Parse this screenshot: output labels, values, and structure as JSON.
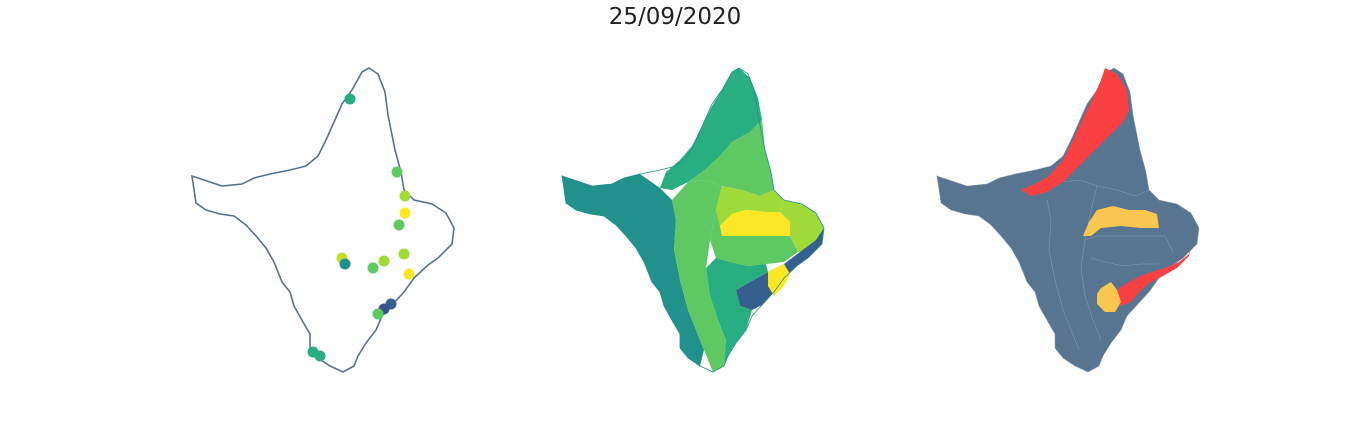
{
  "title": "25/09/2020",
  "colors": {
    "outline": "#557391",
    "viridis_dark": "#355f8d",
    "viridis_teal": "#21918c",
    "viridis_green": "#28ae80",
    "viridis_lightgreen": "#5ec962",
    "viridis_lime": "#a0da39",
    "viridis_yellow": "#fde725",
    "risk_base": "#577590",
    "risk_high": "#f94144",
    "risk_medium": "#f9c74f"
  },
  "chart_data": [
    {
      "type": "scatter",
      "panel": "points",
      "point_colors": [
        "#28ae80",
        "#5ec962",
        "#a0da39",
        "#fde725",
        "#5ec962",
        "#c2df23",
        "#21918c",
        "#5ec962",
        "#a0da39",
        "#a0da39",
        "#fde725",
        "#355f8d",
        "#3b528b",
        "#5ec962",
        "#28ae80",
        "#28ae80"
      ]
    },
    {
      "type": "heatmap",
      "panel": "regions",
      "region_colors": [
        "#28ae80",
        "#5ec962",
        "#21918c",
        "#5ec962",
        "#a0da39",
        "#fde725",
        "#5ec962",
        "#a0da39",
        "#355f8d",
        "#fde725",
        "#28ae80"
      ]
    },
    {
      "type": "heatmap",
      "panel": "risk",
      "region_colors": [
        "#577590",
        "#f94144",
        "#f9c74f",
        "#f94144",
        "#f9c74f"
      ]
    }
  ]
}
